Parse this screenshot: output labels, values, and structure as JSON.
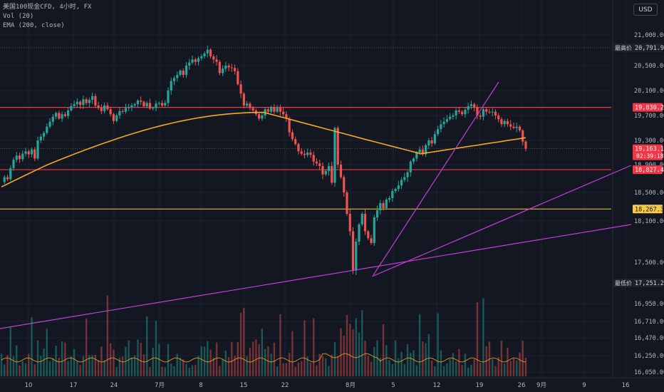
{
  "legend": {
    "symbol": "美国100现金CFD, 4小时, FX",
    "vol": "Vol (20)",
    "ema": "EMA (200, close)"
  },
  "currency_button": "USD",
  "colors": {
    "background": "#131722",
    "up": "#26a69a",
    "down": "#ef5350",
    "ema": "#f5a623",
    "trendline": "#c23fd8",
    "resistance": "#f23645",
    "support_yellow": "#f7c948",
    "axis_text": "#b2b5be",
    "grid": "#1e222d"
  },
  "chart_data": {
    "type": "candlestick",
    "price_scale_ticks": [
      21000,
      20500,
      20100,
      19700,
      19300,
      18900,
      18500,
      18100,
      17500,
      16950,
      16710,
      16470,
      16250,
      16050
    ],
    "volume_scale_ticks": [
      16950,
      16710,
      16470,
      16250,
      16050
    ],
    "x_tick_labels": [
      "10",
      "17",
      "24",
      "7月",
      "8",
      "15",
      "22",
      "8月",
      "5",
      "12",
      "19",
      "26",
      "9月",
      "9",
      "16"
    ],
    "price_labels": [
      {
        "text": "最高价",
        "value": "20,791.90",
        "kind": "high"
      },
      {
        "text": "",
        "value": "19,830.25",
        "kind": "resistance"
      },
      {
        "text": "",
        "value": "19,163.14",
        "sub": "02:39:18",
        "kind": "last"
      },
      {
        "text": "",
        "value": "18,827.41",
        "kind": "resistance"
      },
      {
        "text": "",
        "value": "18,267.36",
        "kind": "support"
      },
      {
        "text": "最低价",
        "value": "17,251.20",
        "kind": "low"
      }
    ],
    "horizontal_lines": [
      {
        "value": 19830.25,
        "kind": "resistance"
      },
      {
        "value": 18827.41,
        "kind": "resistance"
      },
      {
        "value": 18267.36,
        "kind": "support"
      },
      {
        "value": 20791.9,
        "kind": "dotted"
      },
      {
        "value": 19163.14,
        "kind": "dotted"
      }
    ],
    "price_series_approx": [
      18650,
      18720,
      18690,
      18850,
      18980,
      19050,
      18990,
      19080,
      19120,
      19070,
      19150,
      19000,
      19300,
      19360,
      19420,
      19520,
      19600,
      19680,
      19740,
      19650,
      19720,
      19690,
      19780,
      19850,
      19880,
      19920,
      19870,
      19960,
      19900,
      19950,
      20010,
      19860,
      19820,
      19770,
      19860,
      19800,
      19720,
      19610,
      19700,
      19770,
      19760,
      19820,
      19830,
      19860,
      19880,
      19940,
      19920,
      19850,
      19900,
      19810,
      19820,
      19890,
      19900,
      19860,
      19900,
      20100,
      20250,
      20300,
      20350,
      20420,
      20350,
      20500,
      20550,
      20600,
      20560,
      20620,
      20650,
      20700,
      20760,
      20650,
      20600,
      20560,
      20380,
      20450,
      20500,
      20470,
      20460,
      20410,
      20200,
      20050,
      19860,
      19890,
      19820,
      19780,
      19720,
      19650,
      19700,
      19800,
      19760,
      19830,
      19760,
      19820,
      19760,
      19720,
      19650,
      19430,
      19320,
      19240,
      19120,
      19080,
      19060,
      19100,
      19060,
      18950,
      18920,
      18880,
      18760,
      18810,
      18880,
      18640,
      19500,
      18900,
      18720,
      18500,
      18200,
      17950,
      17400,
      17800,
      18050,
      18200,
      17950,
      17850,
      17780,
      18150,
      18250,
      18350,
      18280,
      18400,
      18420,
      18520,
      18550,
      18600,
      18680,
      18720,
      18790,
      18950,
      19000,
      19100,
      19150,
      19070,
      19220,
      19300,
      19250,
      19400,
      19480,
      19560,
      19600,
      19640,
      19680,
      19700,
      19780,
      19760,
      19720,
      19790,
      19850,
      19880,
      19830,
      19700,
      19680,
      19800,
      19760,
      19750,
      19760,
      19700,
      19640,
      19560,
      19610,
      19560,
      19520,
      19500,
      19520,
      19460,
      19280,
      19163
    ],
    "ema_200": {
      "start": 18580,
      "peak": 19750,
      "end": 19320
    }
  }
}
